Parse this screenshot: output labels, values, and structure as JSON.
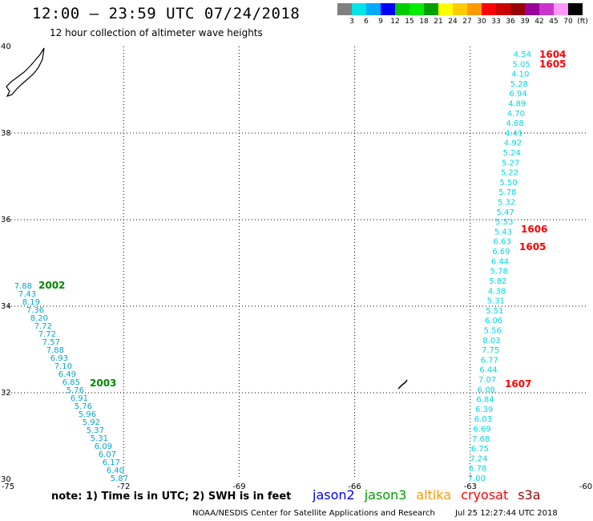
{
  "header": {
    "title": "12:00 – 23:59 UTC 07/24/2018",
    "subtitle": "12 hour collection of altimeter wave heights"
  },
  "legend": {
    "labels": [
      "3",
      "6",
      "9",
      "12",
      "15",
      "18",
      "21",
      "24",
      "27",
      "30",
      "33",
      "36",
      "39",
      "42",
      "45",
      "70",
      "(ft)"
    ],
    "colors": [
      "#808080",
      "#00e5e5",
      "#00aaff",
      "#0000ff",
      "#00cc00",
      "#00ee00",
      "#00a000",
      "#ffff00",
      "#ffcc00",
      "#ff9900",
      "#ff0000",
      "#cc0000",
      "#990000",
      "#990099",
      "#cc33cc",
      "#ff99ff",
      "#000000"
    ]
  },
  "axes": {
    "lon_labels": [
      "-75",
      "-72",
      "-69",
      "-66",
      "-63",
      "-60"
    ],
    "lon_values": [
      -75,
      -72,
      -69,
      -66,
      -63,
      -60
    ],
    "lat_labels": [
      "40",
      "38",
      "36",
      "34",
      "32",
      "30"
    ],
    "lat_values": [
      40,
      38,
      36,
      34,
      32,
      30
    ]
  },
  "tracks": {
    "east_track_values": [
      "4.54",
      "5.05",
      "4.10",
      "5.28",
      "6.94",
      "4.89",
      "4.70",
      "4.88",
      "4.41",
      "4.92",
      "5.24",
      "5.27",
      "5.22",
      "5.50",
      "5.78",
      "5.32",
      "5.47",
      "5.53",
      "5.43",
      "6.63",
      "6.69",
      "6.44",
      "5.78",
      "5.82",
      "4.38",
      "5.31",
      "5.51",
      "6.06",
      "5.56",
      "8.03",
      "7.75",
      "6.77",
      "6.44",
      "7.07",
      "6.08",
      "6.84",
      "6.39",
      "6.03",
      "6.69",
      "7.68",
      "6.75",
      "7.24",
      "6.78",
      "7.00"
    ],
    "west_track_values": [
      "7.88",
      "7.43",
      "8.19",
      "7.36",
      "8.20",
      "7.72",
      "7.72",
      "7.57",
      "7.88",
      "6.93",
      "7.10",
      "6.49",
      "6.85",
      "5.76",
      "6.91",
      "5.76",
      "5.96",
      "5.92",
      "5.37",
      "5.31",
      "6.09",
      "6.07",
      "6.17",
      "6.40",
      "5.87"
    ],
    "east_color": "#00d8e0",
    "west_color": "#00a8cc"
  },
  "pass_labels": [
    {
      "text": "1604",
      "color": "#ff0000"
    },
    {
      "text": "1605",
      "color": "#ff0000"
    },
    {
      "text": "1606",
      "color": "#ff0000"
    },
    {
      "text": "1605",
      "color": "#ff0000"
    },
    {
      "text": "1607",
      "color": "#ff0000"
    },
    {
      "text": "2002",
      "color": "#008800"
    },
    {
      "text": "2003",
      "color": "#008800"
    }
  ],
  "note": "note: 1) Time is in UTC; 2) SWH is in feet",
  "satellites": [
    {
      "name": "jason2",
      "color": "#0000ff"
    },
    {
      "name": "jason3",
      "color": "#009900"
    },
    {
      "name": "altika",
      "color": "#ff9900"
    },
    {
      "name": "cryosat",
      "color": "#ff0000"
    },
    {
      "name": "s3a",
      "color": "#990000"
    }
  ],
  "footer": {
    "credit": "NOAA/NESDIS Center for Satellite Applications and Research",
    "timestamp": "Jul 25 12:27:44 UTC 2018"
  }
}
